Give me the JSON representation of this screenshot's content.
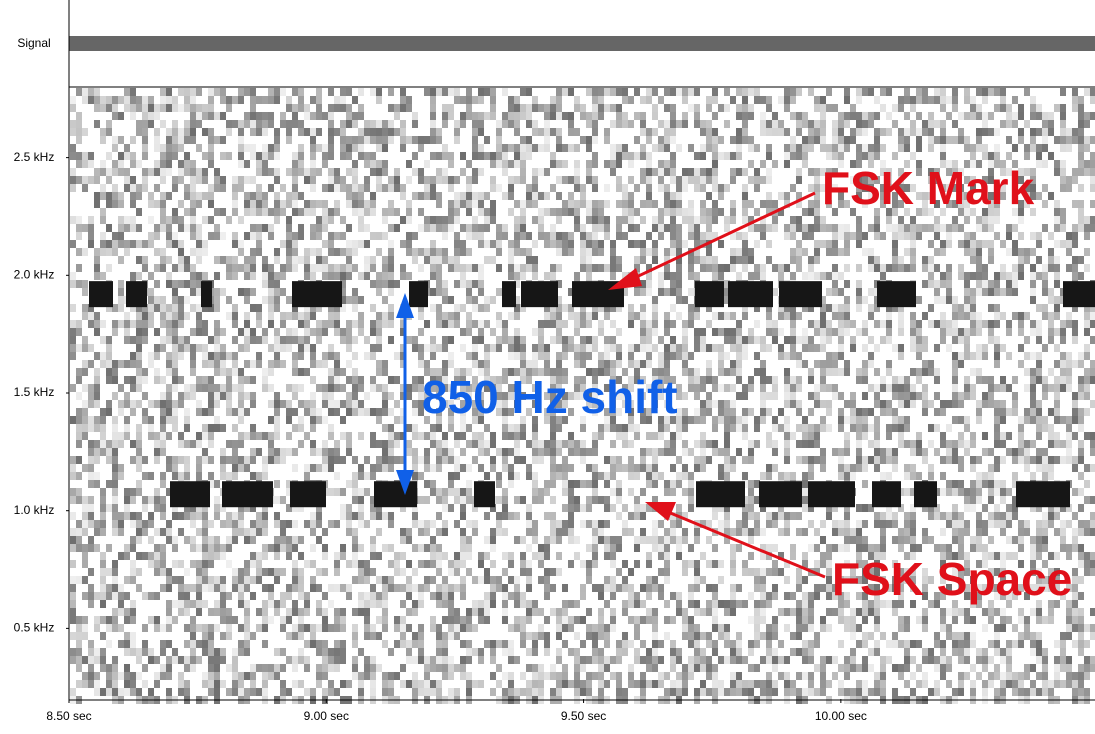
{
  "chart_data": {
    "type": "spectrogram",
    "signal_label": "Signal",
    "xlim": [
      8.5,
      10.49
    ],
    "ylim": [
      0.2,
      2.8
    ],
    "xticks": [
      {
        "value": 8.5,
        "label": "8.50 sec"
      },
      {
        "value": 9.0,
        "label": "9.00 sec"
      },
      {
        "value": 9.5,
        "label": "9.50 sec"
      },
      {
        "value": 10.0,
        "label": "10.00 sec"
      }
    ],
    "yticks": [
      {
        "value": 0.5,
        "label": "0.5 kHz"
      },
      {
        "value": 1.0,
        "label": "1.0 kHz"
      },
      {
        "value": 1.5,
        "label": "1.5 kHz"
      },
      {
        "value": 2.0,
        "label": "2.0 kHz"
      },
      {
        "value": 2.5,
        "label": "2.5 kHz"
      }
    ],
    "tones": [
      {
        "name": "FSK Mark",
        "freq": 1.92,
        "color": "#e0101a"
      },
      {
        "name": "FSK Space",
        "freq": 1.07,
        "color": "#e0101a"
      }
    ],
    "shift_label": "850 Hz shift",
    "shift_color": "#1060e8"
  }
}
